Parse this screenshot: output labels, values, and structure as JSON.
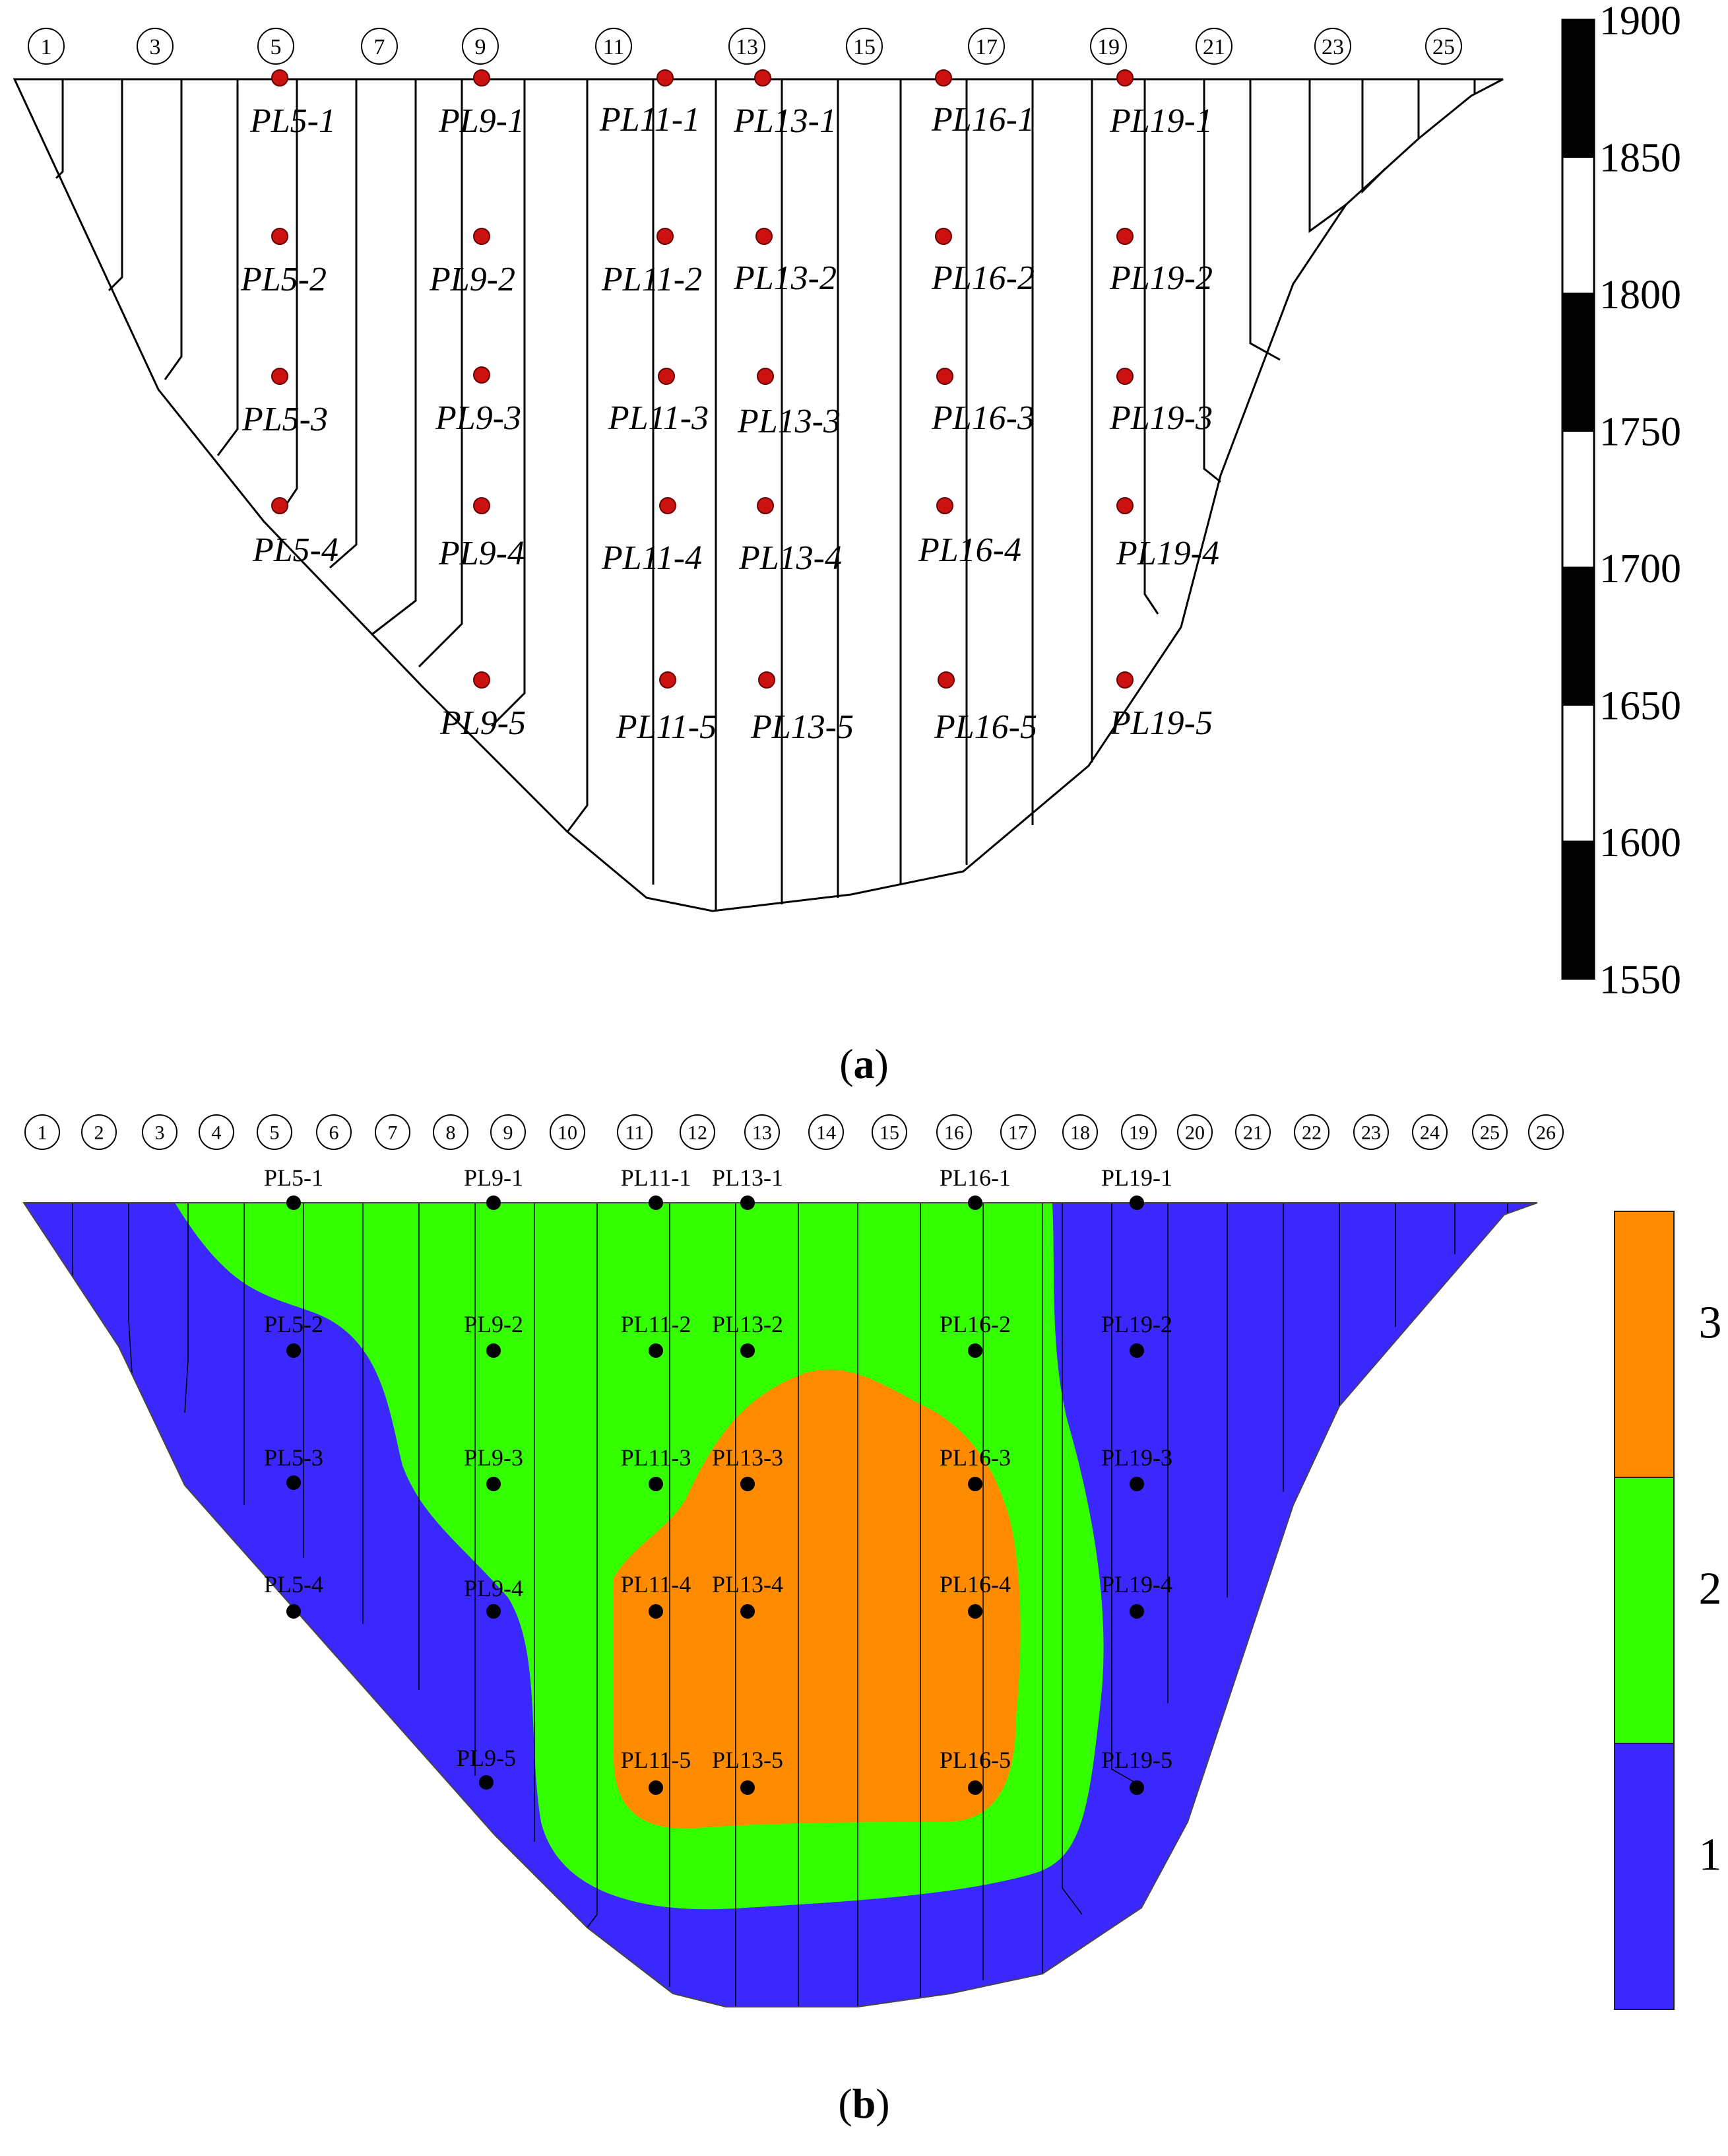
{
  "panel_a": {
    "caption_letter": "a",
    "dam_number_labels": [
      "1",
      "3",
      "5",
      "7",
      "9",
      "11",
      "13",
      "15",
      "17",
      "19",
      "21",
      "23",
      "25"
    ],
    "monitors": [
      "PL5-1",
      "PL5-2",
      "PL5-3",
      "PL5-4",
      "PL9-1",
      "PL9-2",
      "PL9-3",
      "PL9-4",
      "PL9-5",
      "PL11-1",
      "PL11-2",
      "PL11-3",
      "PL11-4",
      "PL11-5",
      "PL13-1",
      "PL13-2",
      "PL13-3",
      "PL13-4",
      "PL13-5",
      "PL16-1",
      "PL16-2",
      "PL16-3",
      "PL16-4",
      "PL16-5",
      "PL19-1",
      "PL19-2",
      "PL19-3",
      "PL19-4",
      "PL19-5"
    ],
    "elevation_scale": [
      "1900",
      "1850",
      "1800",
      "1750",
      "1700",
      "1650",
      "1600",
      "1550"
    ],
    "marker_color": "#cc1111"
  },
  "panel_b": {
    "caption_letter": "b",
    "dam_number_labels": [
      "1",
      "2",
      "3",
      "4",
      "5",
      "6",
      "7",
      "8",
      "9",
      "10",
      "11",
      "12",
      "13",
      "14",
      "15",
      "16",
      "17",
      "18",
      "19",
      "20",
      "21",
      "22",
      "23",
      "24",
      "25",
      "26"
    ],
    "monitors": [
      "PL5-1",
      "PL5-2",
      "PL5-3",
      "PL5-4",
      "PL9-1",
      "PL9-2",
      "PL9-3",
      "PL9-4",
      "PL9-5",
      "PL11-1",
      "PL11-2",
      "PL11-3",
      "PL11-4",
      "PL11-5",
      "PL13-1",
      "PL13-2",
      "PL13-3",
      "PL13-4",
      "PL13-5",
      "PL16-1",
      "PL16-2",
      "PL16-3",
      "PL16-4",
      "PL16-5",
      "PL19-1",
      "PL19-2",
      "PL19-3",
      "PL19-4",
      "PL19-5"
    ],
    "legend": [
      {
        "label": "3",
        "color": "#ff8c00"
      },
      {
        "label": "2",
        "color": "#33ff00"
      },
      {
        "label": "1",
        "color": "#3a28ff"
      }
    ],
    "marker_color": "#000000"
  }
}
